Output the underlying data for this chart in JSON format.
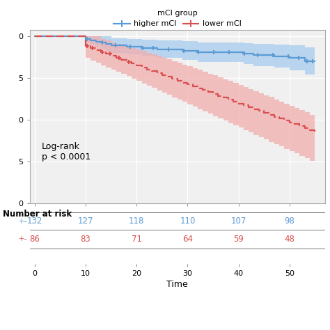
{
  "legend_title": "mCI group",
  "legend_labels": [
    "higher mCI",
    "lower mCI"
  ],
  "xlabel": "Time",
  "xlim": [
    -1,
    57
  ],
  "ylim": [
    0.0,
    1.04
  ],
  "yticks": [
    0.0,
    0.25,
    0.5,
    0.75,
    1.0
  ],
  "ytick_labels": [
    "0",
    "5",
    "0",
    "5",
    "0"
  ],
  "xticks": [
    0,
    10,
    20,
    30,
    40,
    50
  ],
  "blue_color": "#5B9BD5",
  "red_color": "#D94F4F",
  "blue_fill": "#AED0EE",
  "red_fill": "#F2AEAE",
  "annotation": "Log-rank\np < 0.0001",
  "bg_color": "#F0F0F0",
  "grid_color": "#FFFFFF",
  "number_at_risk_label": "Number at risk",
  "risk_times": [
    0,
    10,
    20,
    30,
    40,
    50
  ],
  "risk_blue": [
    132,
    127,
    118,
    110,
    107,
    98
  ],
  "risk_red": [
    86,
    83,
    71,
    64,
    59,
    48
  ],
  "higher_times": [
    0,
    1,
    2,
    3,
    4,
    5,
    6,
    7,
    8,
    9,
    10,
    11,
    12,
    13,
    14,
    15,
    16,
    17,
    18,
    19,
    20,
    21,
    22,
    23,
    24,
    25,
    26,
    27,
    28,
    29,
    30,
    31,
    32,
    33,
    34,
    35,
    36,
    37,
    38,
    39,
    40,
    41,
    42,
    43,
    44,
    45,
    46,
    47,
    48,
    49,
    50,
    51,
    52,
    53,
    54,
    55
  ],
  "higher_surv": [
    1.0,
    1.0,
    1.0,
    1.0,
    1.0,
    1.0,
    1.0,
    1.0,
    1.0,
    1.0,
    0.985,
    0.977,
    0.969,
    0.962,
    0.954,
    0.946,
    0.946,
    0.946,
    0.938,
    0.938,
    0.938,
    0.93,
    0.93,
    0.93,
    0.922,
    0.922,
    0.922,
    0.922,
    0.922,
    0.914,
    0.914,
    0.914,
    0.906,
    0.906,
    0.906,
    0.906,
    0.906,
    0.906,
    0.906,
    0.906,
    0.906,
    0.898,
    0.898,
    0.889,
    0.889,
    0.889,
    0.889,
    0.88,
    0.88,
    0.88,
    0.87,
    0.87,
    0.87,
    0.85,
    0.85,
    0.85
  ],
  "higher_upper": [
    1.0,
    1.0,
    1.0,
    1.0,
    1.0,
    1.0,
    1.0,
    1.0,
    1.0,
    1.0,
    1.0,
    1.0,
    1.0,
    1.0,
    1.0,
    0.99,
    0.99,
    0.99,
    0.985,
    0.985,
    0.985,
    0.98,
    0.98,
    0.98,
    0.975,
    0.975,
    0.975,
    0.975,
    0.975,
    0.97,
    0.97,
    0.97,
    0.965,
    0.965,
    0.965,
    0.965,
    0.965,
    0.965,
    0.965,
    0.965,
    0.965,
    0.96,
    0.96,
    0.955,
    0.955,
    0.955,
    0.955,
    0.952,
    0.952,
    0.952,
    0.945,
    0.945,
    0.945,
    0.935,
    0.935,
    0.935
  ],
  "higher_lower": [
    1.0,
    1.0,
    1.0,
    1.0,
    1.0,
    1.0,
    1.0,
    1.0,
    1.0,
    1.0,
    0.962,
    0.95,
    0.938,
    0.927,
    0.915,
    0.903,
    0.903,
    0.903,
    0.892,
    0.892,
    0.892,
    0.881,
    0.881,
    0.881,
    0.87,
    0.87,
    0.87,
    0.87,
    0.87,
    0.858,
    0.858,
    0.858,
    0.847,
    0.847,
    0.847,
    0.847,
    0.847,
    0.847,
    0.847,
    0.847,
    0.847,
    0.836,
    0.836,
    0.824,
    0.824,
    0.824,
    0.824,
    0.812,
    0.812,
    0.812,
    0.799,
    0.799,
    0.799,
    0.773,
    0.773,
    0.773
  ],
  "lower_times": [
    0,
    1,
    2,
    3,
    4,
    5,
    6,
    7,
    8,
    9,
    10,
    11,
    12,
    13,
    14,
    15,
    16,
    17,
    18,
    19,
    20,
    21,
    22,
    23,
    24,
    25,
    26,
    27,
    28,
    29,
    30,
    31,
    32,
    33,
    34,
    35,
    36,
    37,
    38,
    39,
    40,
    41,
    42,
    43,
    44,
    45,
    46,
    47,
    48,
    49,
    50,
    51,
    52,
    53,
    54,
    55
  ],
  "lower_surv": [
    1.0,
    1.0,
    1.0,
    1.0,
    1.0,
    1.0,
    1.0,
    1.0,
    1.0,
    1.0,
    0.942,
    0.93,
    0.918,
    0.906,
    0.895,
    0.883,
    0.872,
    0.86,
    0.849,
    0.837,
    0.826,
    0.815,
    0.803,
    0.792,
    0.781,
    0.769,
    0.758,
    0.747,
    0.735,
    0.724,
    0.713,
    0.701,
    0.69,
    0.679,
    0.667,
    0.656,
    0.645,
    0.633,
    0.622,
    0.611,
    0.599,
    0.588,
    0.577,
    0.565,
    0.554,
    0.543,
    0.531,
    0.52,
    0.509,
    0.497,
    0.486,
    0.475,
    0.463,
    0.452,
    0.441,
    0.43
  ],
  "lower_upper": [
    1.0,
    1.0,
    1.0,
    1.0,
    1.0,
    1.0,
    1.0,
    1.0,
    1.0,
    1.0,
    1.0,
    1.0,
    1.0,
    0.985,
    0.975,
    0.965,
    0.957,
    0.948,
    0.94,
    0.93,
    0.922,
    0.912,
    0.902,
    0.893,
    0.883,
    0.873,
    0.863,
    0.853,
    0.842,
    0.831,
    0.821,
    0.81,
    0.8,
    0.789,
    0.778,
    0.767,
    0.756,
    0.744,
    0.733,
    0.721,
    0.71,
    0.698,
    0.686,
    0.674,
    0.661,
    0.649,
    0.637,
    0.624,
    0.611,
    0.598,
    0.585,
    0.572,
    0.559,
    0.546,
    0.532,
    0.518
  ],
  "lower_lower": [
    1.0,
    1.0,
    1.0,
    1.0,
    1.0,
    1.0,
    1.0,
    1.0,
    1.0,
    1.0,
    0.872,
    0.857,
    0.843,
    0.828,
    0.815,
    0.801,
    0.788,
    0.775,
    0.762,
    0.748,
    0.734,
    0.72,
    0.706,
    0.692,
    0.678,
    0.664,
    0.65,
    0.636,
    0.622,
    0.608,
    0.594,
    0.58,
    0.566,
    0.552,
    0.538,
    0.524,
    0.51,
    0.496,
    0.482,
    0.468,
    0.454,
    0.44,
    0.426,
    0.412,
    0.398,
    0.384,
    0.37,
    0.356,
    0.342,
    0.328,
    0.314,
    0.3,
    0.286,
    0.272,
    0.258,
    0.244
  ],
  "censor_blue_times": [
    10.3,
    13.2,
    15.8,
    18.8,
    21.2,
    23.2,
    26.2,
    29.2,
    32.2,
    35.2,
    38.2,
    41.2,
    43.8,
    46.8,
    49.8,
    51.8,
    53.5,
    54.5
  ],
  "censor_blue_surv": [
    0.985,
    0.962,
    0.946,
    0.938,
    0.93,
    0.93,
    0.922,
    0.914,
    0.906,
    0.906,
    0.906,
    0.898,
    0.889,
    0.889,
    0.88,
    0.87,
    0.85,
    0.85
  ],
  "censor_red_times": [
    10.3,
    11.3,
    13.3,
    14.8,
    16.5,
    18.5
  ],
  "censor_red_surv": [
    0.942,
    0.93,
    0.906,
    0.895,
    0.872,
    0.849
  ]
}
